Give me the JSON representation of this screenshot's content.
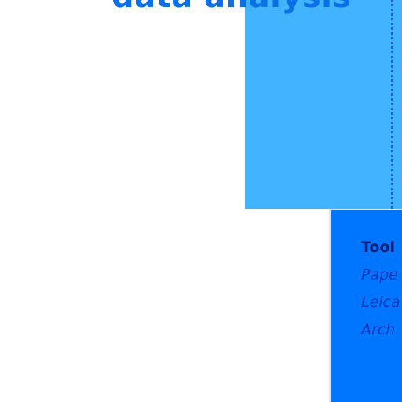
{
  "heading": "data analysis",
  "tools": {
    "title": "Tool",
    "items": [
      "Pape",
      "Leica",
      "Arch"
    ]
  },
  "colors": {
    "light_block": "#42b4ff",
    "dark_block": "#0076ff",
    "heading_text": "#0a6fe8",
    "tools_text": "#0a2fa8",
    "dotted_line": "#1a5fd6"
  }
}
